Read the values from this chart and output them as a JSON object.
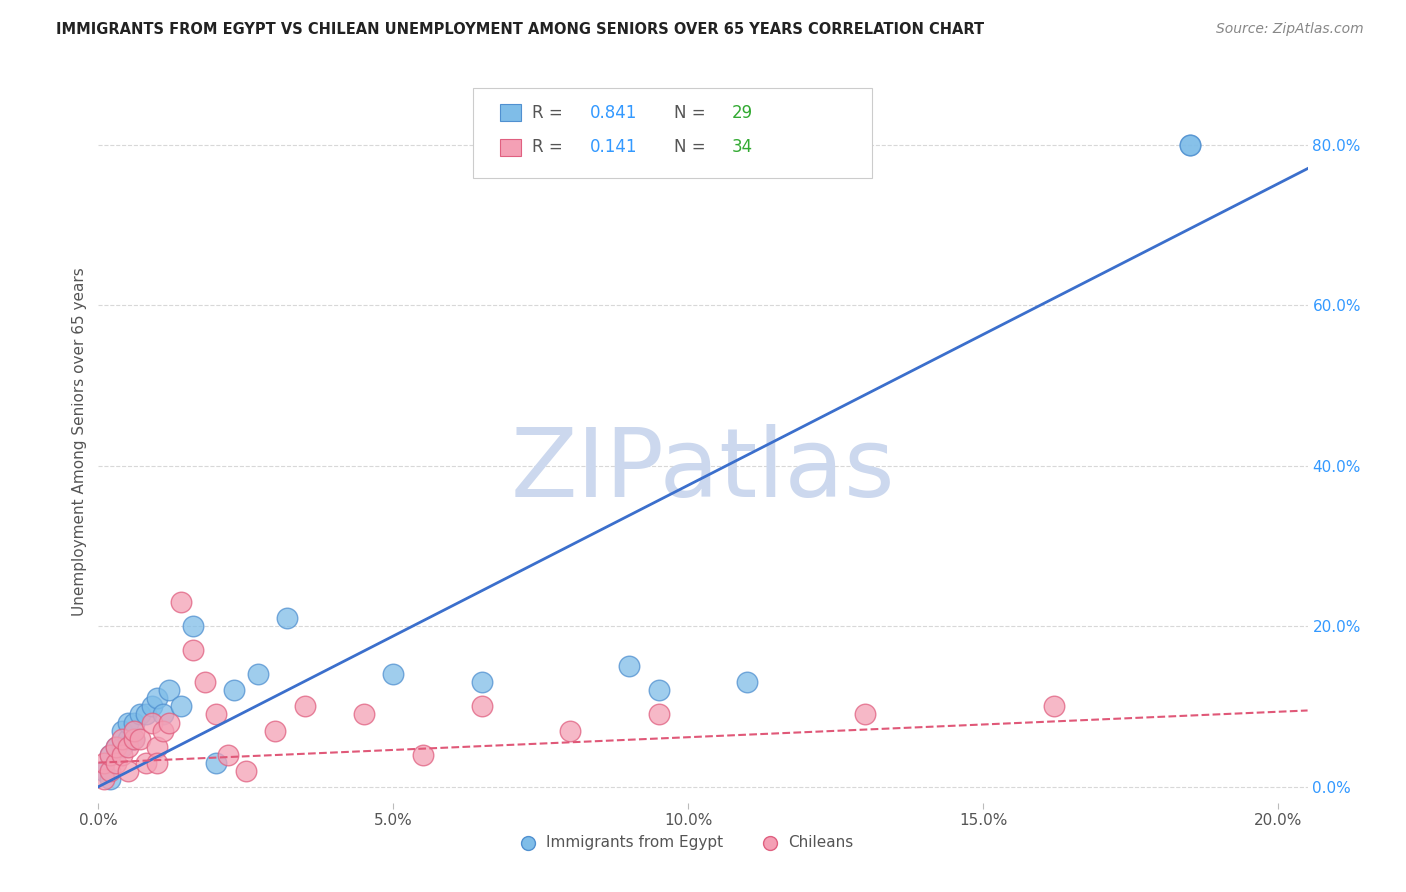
{
  "title": "IMMIGRANTS FROM EGYPT VS CHILEAN UNEMPLOYMENT AMONG SENIORS OVER 65 YEARS CORRELATION CHART",
  "source": "Source: ZipAtlas.com",
  "ylabel_left": "Unemployment Among Seniors over 65 years",
  "xlabel_ticks": [
    "0.0%",
    "5.0%",
    "10.0%",
    "15.0%",
    "20.0%"
  ],
  "xlabel_vals": [
    0.0,
    0.05,
    0.1,
    0.15,
    0.2
  ],
  "ylabel_right_ticks": [
    "80.0%",
    "60.0%",
    "40.0%",
    "20.0%",
    "0.0%"
  ],
  "ylabel_right_vals": [
    0.8,
    0.6,
    0.4,
    0.2,
    0.0
  ],
  "xlim": [
    0.0,
    0.205
  ],
  "ylim": [
    -0.02,
    0.88
  ],
  "blue_scatter_x": [
    0.001,
    0.002,
    0.002,
    0.003,
    0.004,
    0.004,
    0.005,
    0.005,
    0.006,
    0.006,
    0.007,
    0.008,
    0.009,
    0.01,
    0.011,
    0.012,
    0.014,
    0.016,
    0.02,
    0.023,
    0.027,
    0.032,
    0.05,
    0.065,
    0.09,
    0.185,
    0.185,
    0.095,
    0.11
  ],
  "blue_scatter_y": [
    0.02,
    0.01,
    0.04,
    0.05,
    0.05,
    0.07,
    0.06,
    0.08,
    0.06,
    0.08,
    0.09,
    0.09,
    0.1,
    0.11,
    0.09,
    0.12,
    0.1,
    0.2,
    0.03,
    0.12,
    0.14,
    0.21,
    0.14,
    0.13,
    0.15,
    0.8,
    0.8,
    0.12,
    0.13
  ],
  "pink_scatter_x": [
    0.001,
    0.001,
    0.002,
    0.002,
    0.003,
    0.003,
    0.004,
    0.004,
    0.005,
    0.005,
    0.006,
    0.006,
    0.007,
    0.008,
    0.009,
    0.01,
    0.01,
    0.011,
    0.012,
    0.014,
    0.016,
    0.018,
    0.02,
    0.022,
    0.025,
    0.03,
    0.035,
    0.045,
    0.055,
    0.065,
    0.08,
    0.095,
    0.13,
    0.162
  ],
  "pink_scatter_y": [
    0.01,
    0.03,
    0.02,
    0.04,
    0.03,
    0.05,
    0.04,
    0.06,
    0.02,
    0.05,
    0.06,
    0.07,
    0.06,
    0.03,
    0.08,
    0.05,
    0.03,
    0.07,
    0.08,
    0.23,
    0.17,
    0.13,
    0.09,
    0.04,
    0.02,
    0.07,
    0.1,
    0.09,
    0.04,
    0.1,
    0.07,
    0.09,
    0.09,
    0.1
  ],
  "blue_line_x": [
    0.0,
    0.205
  ],
  "blue_line_y": [
    0.0,
    0.77
  ],
  "pink_line_x": [
    0.0,
    0.205
  ],
  "pink_line_y": [
    0.03,
    0.095
  ],
  "blue_color": "#7fbde8",
  "blue_edge": "#5090d0",
  "pink_color": "#f4a0b5",
  "pink_edge": "#e06080",
  "blue_line_color": "#3b6fcc",
  "pink_line_color": "#e05878",
  "R_color": "#3399ff",
  "N_color": "#33aa33",
  "watermark": "ZIPatlas",
  "watermark_color": "#ccd8ee",
  "background_color": "#ffffff",
  "grid_color": "#d8d8d8",
  "title_color": "#222222",
  "label_color": "#555555",
  "right_tick_color": "#3399ff"
}
